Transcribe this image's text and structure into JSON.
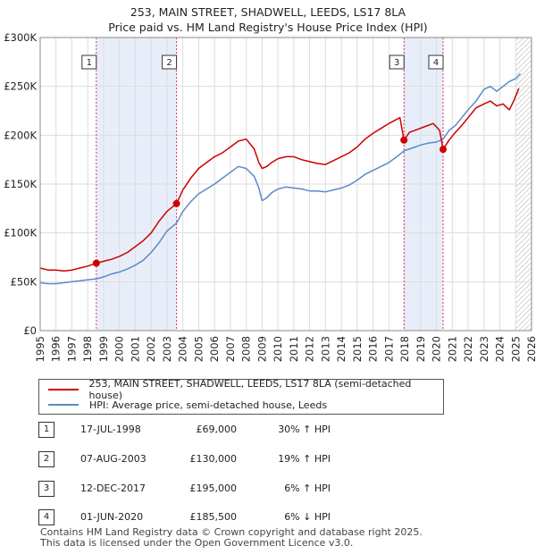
{
  "title_line1": "253, MAIN STREET, SHADWELL, LEEDS, LS17 8LA",
  "title_line2": "Price paid vs. HM Land Registry's House Price Index (HPI)",
  "legend": {
    "property": "253, MAIN STREET, SHADWELL, LEEDS, LS17 8LA (semi-detached house)",
    "hpi": "HPI: Average price, semi-detached house, Leeds"
  },
  "colors": {
    "property": "#cc0000",
    "hpi": "#5b8ac8",
    "shade": "#e8eef9",
    "marker_line": "#dd3366",
    "grid": "#dddddd"
  },
  "sales": [
    {
      "num": "1",
      "date": "17-JUL-1998",
      "price": "£69,000",
      "hpi": "30% ↑ HPI"
    },
    {
      "num": "2",
      "date": "07-AUG-2003",
      "price": "£130,000",
      "hpi": "19% ↑ HPI"
    },
    {
      "num": "3",
      "date": "12-DEC-2017",
      "price": "£195,000",
      "hpi": "6% ↑ HPI"
    },
    {
      "num": "4",
      "date": "01-JUN-2020",
      "price": "£185,500",
      "hpi": "6% ↓ HPI"
    }
  ],
  "footer_line1": "Contains HM Land Registry data © Crown copyright and database right 2025.",
  "footer_line2": "This data is licensed under the Open Government Licence v3.0.",
  "chart_data": {
    "type": "line",
    "title": "253, MAIN STREET, SHADWELL, LEEDS, LS17 8LA - Price paid vs. HM Land Registry's House Price Index (HPI)",
    "xlabel": "",
    "ylabel": "",
    "xlim": [
      1995,
      2026
    ],
    "ylim": [
      0,
      300000
    ],
    "x_ticks": [
      1995,
      1996,
      1997,
      1998,
      1999,
      2000,
      2001,
      2002,
      2003,
      2004,
      2005,
      2006,
      2007,
      2008,
      2009,
      2010,
      2011,
      2012,
      2013,
      2014,
      2015,
      2016,
      2017,
      2018,
      2019,
      2020,
      2021,
      2022,
      2023,
      2024,
      2025,
      2026
    ],
    "y_ticks": [
      0,
      50000,
      100000,
      150000,
      200000,
      250000,
      300000
    ],
    "y_tick_labels": [
      "£0",
      "£50K",
      "£100K",
      "£150K",
      "£200K",
      "£250K",
      "£300K"
    ],
    "shaded_periods": [
      [
        1998.54,
        2003.6
      ],
      [
        2017.95,
        2020.42
      ]
    ],
    "hatched_from": 2025.0,
    "series": [
      {
        "name": "253, MAIN STREET, SHADWELL, LEEDS, LS17 8LA (semi-detached house)",
        "x": [
          1995.0,
          1995.5,
          1996.0,
          1996.5,
          1997.0,
          1997.5,
          1998.0,
          1998.54,
          1999.0,
          1999.5,
          2000.0,
          2000.5,
          2001.0,
          2001.5,
          2002.0,
          2002.5,
          2003.0,
          2003.6,
          2004.0,
          2004.5,
          2005.0,
          2005.5,
          2006.0,
          2006.5,
          2007.0,
          2007.5,
          2008.0,
          2008.5,
          2008.8,
          2009.0,
          2009.3,
          2009.6,
          2010.0,
          2010.5,
          2011.0,
          2011.5,
          2012.0,
          2012.5,
          2013.0,
          2013.5,
          2014.0,
          2014.5,
          2015.0,
          2015.5,
          2016.0,
          2016.5,
          2017.0,
          2017.7,
          2017.95,
          2018.3,
          2018.8,
          2019.3,
          2019.8,
          2020.2,
          2020.42,
          2020.8,
          2021.2,
          2021.6,
          2022.0,
          2022.5,
          2023.0,
          2023.4,
          2023.8,
          2024.2,
          2024.6,
          2024.9,
          2025.2
        ],
        "values": [
          64000,
          62000,
          62000,
          61000,
          62000,
          64000,
          66000,
          69000,
          71000,
          73000,
          76000,
          80000,
          86000,
          92000,
          100000,
          112000,
          122000,
          130000,
          144000,
          156000,
          166000,
          172000,
          178000,
          182000,
          188000,
          194000,
          196000,
          186000,
          172000,
          166000,
          168000,
          172000,
          176000,
          178000,
          178000,
          175000,
          173000,
          171000,
          170000,
          174000,
          178000,
          182000,
          188000,
          196000,
          202000,
          207000,
          212000,
          218000,
          195000,
          203000,
          206000,
          209000,
          212000,
          205000,
          185500,
          195000,
          203000,
          210000,
          218000,
          228000,
          232000,
          235000,
          230000,
          232000,
          226000,
          236000,
          248000
        ]
      },
      {
        "name": "HPI: Average price, semi-detached house, Leeds",
        "x": [
          1995.0,
          1995.5,
          1996.0,
          1996.5,
          1997.0,
          1997.5,
          1998.0,
          1998.54,
          1999.0,
          1999.5,
          2000.0,
          2000.5,
          2001.0,
          2001.5,
          2002.0,
          2002.5,
          2003.0,
          2003.6,
          2004.0,
          2004.5,
          2005.0,
          2005.5,
          2006.0,
          2006.5,
          2007.0,
          2007.5,
          2008.0,
          2008.5,
          2008.8,
          2009.0,
          2009.3,
          2009.6,
          2010.0,
          2010.5,
          2011.0,
          2011.5,
          2012.0,
          2012.5,
          2013.0,
          2013.5,
          2014.0,
          2014.5,
          2015.0,
          2015.5,
          2016.0,
          2016.5,
          2017.0,
          2017.5,
          2017.95,
          2018.5,
          2019.0,
          2019.5,
          2020.0,
          2020.42,
          2020.8,
          2021.2,
          2021.6,
          2022.0,
          2022.5,
          2023.0,
          2023.4,
          2023.8,
          2024.2,
          2024.6,
          2025.0,
          2025.3
        ],
        "values": [
          49000,
          48000,
          48000,
          49000,
          50000,
          51000,
          52000,
          53000,
          55000,
          58000,
          60000,
          63000,
          67000,
          72000,
          80000,
          90000,
          102000,
          110000,
          122000,
          132000,
          140000,
          145000,
          150000,
          156000,
          162000,
          168000,
          166000,
          158000,
          146000,
          133000,
          136000,
          141000,
          145000,
          147000,
          146000,
          145000,
          143000,
          143000,
          142000,
          144000,
          146000,
          149000,
          154000,
          160000,
          164000,
          168000,
          172000,
          178000,
          184000,
          187000,
          190000,
          192000,
          193000,
          196000,
          205000,
          210000,
          218000,
          226000,
          235000,
          247000,
          250000,
          245000,
          250000,
          255000,
          258000,
          263000
        ]
      }
    ],
    "sale_points": [
      {
        "label": "1",
        "x": 1998.54,
        "value": 69000
      },
      {
        "label": "2",
        "x": 2003.6,
        "value": 130000
      },
      {
        "label": "3",
        "x": 2017.95,
        "value": 195000
      },
      {
        "label": "4",
        "x": 2020.42,
        "value": 185500
      }
    ]
  }
}
